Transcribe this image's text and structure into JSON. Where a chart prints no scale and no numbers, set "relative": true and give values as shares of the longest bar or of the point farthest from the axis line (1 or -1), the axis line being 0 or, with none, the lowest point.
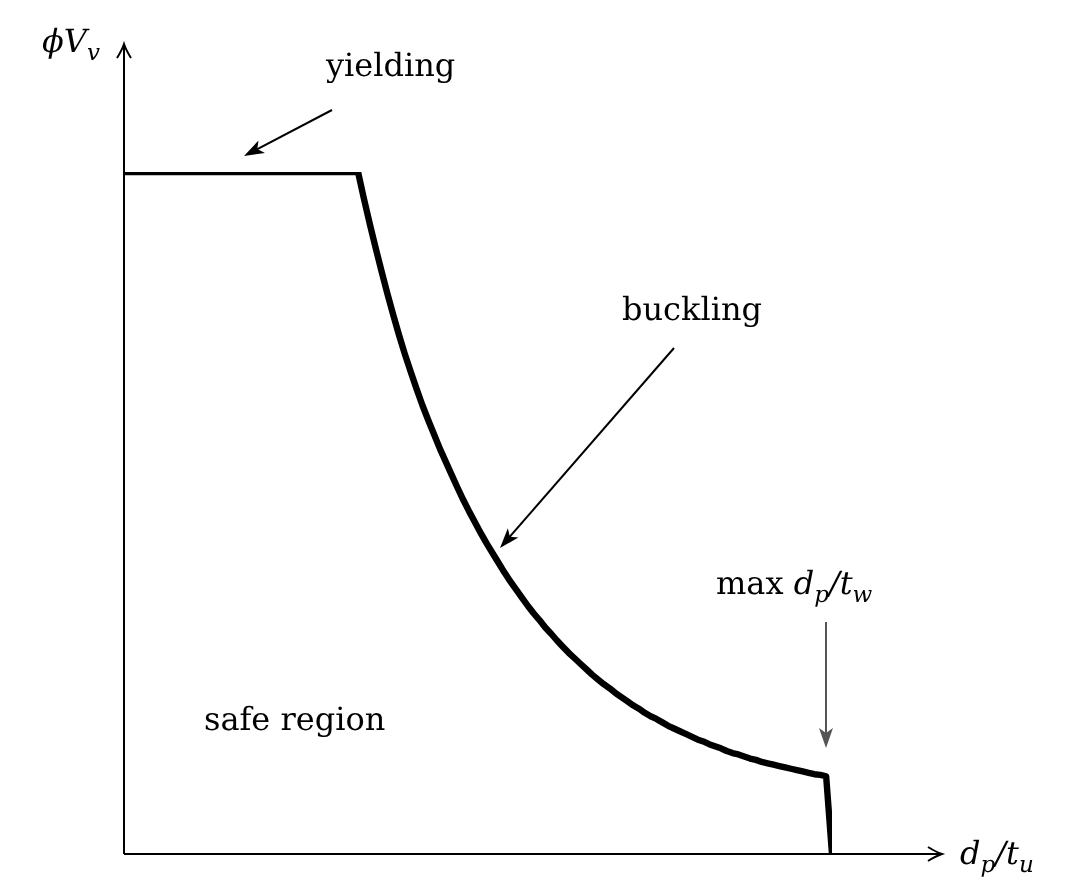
{
  "chart_data": {
    "type": "line",
    "relative": true,
    "xlabel": "d$_{p}$/t$_{u}$",
    "ylabel": "ϕV$_{v}$",
    "annotations": [
      "yielding",
      "buckling",
      "max d$_{p}$/t$_{w}$",
      "safe region"
    ],
    "categories": [
      null,
      null,
      null,
      null,
      null,
      null,
      null,
      null,
      null,
      null,
      null,
      null,
      null,
      null,
      null,
      null,
      null,
      null,
      null,
      null,
      null,
      null,
      null,
      null,
      null,
      null,
      null,
      null,
      null,
      null,
      null,
      null,
      null,
      null,
      null,
      null,
      null,
      null,
      null,
      null,
      null,
      null,
      null,
      null,
      null,
      null,
      null,
      null,
      null,
      null,
      null,
      null,
      null,
      null,
      null,
      null,
      null,
      null,
      null,
      null,
      null,
      null,
      null,
      null,
      null,
      null,
      null,
      null,
      null,
      null,
      null,
      null,
      null,
      null,
      null,
      null,
      null,
      null,
      null,
      null,
      null,
      null,
      null,
      null,
      null,
      null,
      null,
      null,
      null,
      null,
      null,
      null,
      null,
      null,
      null,
      null,
      null,
      null,
      null,
      null,
      null,
      null,
      null,
      null,
      null,
      null,
      null,
      null,
      null,
      null,
      null,
      null,
      null,
      null,
      null,
      null,
      null,
      null,
      null,
      null,
      null,
      null
    ],
    "series": [
      {
        "color": "#000000",
        "values": [
          1,
          1,
          1,
          1,
          1,
          1,
          1,
          1,
          1,
          1,
          1,
          1,
          1,
          1,
          1,
          1,
          1,
          1,
          1,
          1,
          1,
          1,
          1,
          1,
          1,
          1,
          1,
          1,
          1,
          1,
          1,
          1,
          1,
          1,
          1,
          1,
          1,
          1,
          1,
          1,
          1,
          0.961,
          0.924,
          0.889,
          0.855,
          0.822,
          0.791,
          0.761,
          0.733,
          0.707,
          0.682,
          0.658,
          0.636,
          0.615,
          0.594,
          0.575,
          0.556,
          0.537,
          0.519,
          0.502,
          0.486,
          0.47,
          0.455,
          0.441,
          0.427,
          0.413,
          0.4,
          0.388,
          0.376,
          0.364,
          0.353,
          0.343,
          0.332,
          0.323,
          0.313,
          0.304,
          0.295,
          0.287,
          0.279,
          0.271,
          0.263,
          0.256,
          0.249,
          0.243,
          0.236,
          0.23,
          0.224,
          0.218,
          0.213,
          0.207,
          0.202,
          0.198,
          0.193,
          0.188,
          0.184,
          0.18,
          0.176,
          0.172,
          0.168,
          0.165,
          0.161,
          0.158,
          0.155,
          0.151,
          0.148,
          0.146,
          0.143,
          0.14,
          0.138,
          0.135,
          0.133,
          0.131,
          0.129,
          0.127,
          0.125,
          0.123,
          0.121,
          0.119,
          0.117,
          0.116,
          0.114,
          0
        ]
      }
    ],
    "marker": "none",
    "line_style": "solid"
  }
}
